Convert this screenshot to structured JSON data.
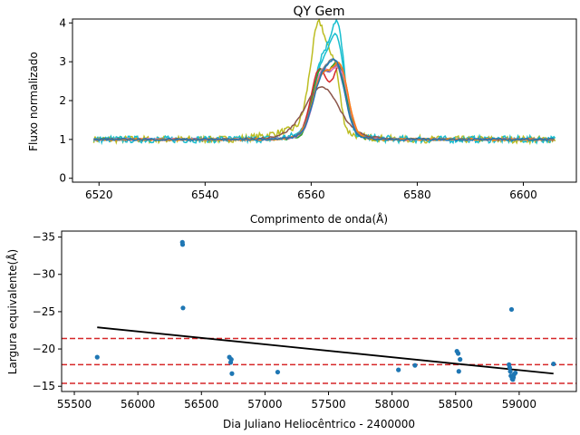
{
  "chart_data": [
    {
      "type": "line",
      "title": "QY Gem",
      "xlabel": "Comprimento de onda(Å)",
      "ylabel": "Fluxo normalizado",
      "xlim": [
        6515,
        6610
      ],
      "ylim": [
        -0.1,
        4.1
      ],
      "xticks": [
        6520,
        6540,
        6560,
        6580,
        6600
      ],
      "yticks": [
        0,
        1,
        2,
        3,
        4
      ],
      "grid": false,
      "legend": "none",
      "x_range_spectra": [
        6519,
        6606
      ],
      "series": [
        {
          "color": "#bcbd22",
          "noisy": true,
          "peaks": [
            [
              6561.5,
              2.7,
              1.6
            ],
            [
              6564.5,
              1.3,
              1.0
            ]
          ],
          "broad": [
            6560,
            0.3,
            6.0
          ]
        },
        {
          "color": "#17becf",
          "noisy": true,
          "peaks": [
            [
              6562.0,
              1.8,
              1.6
            ],
            [
              6565.0,
              2.5,
              1.3
            ]
          ],
          "broad": [
            6563,
            0.2,
            5.0
          ]
        },
        {
          "color": "#17becf",
          "noisy": false,
          "peaks": [
            [
              6562.0,
              1.6,
              1.7
            ],
            [
              6565.0,
              2.1,
              1.4
            ]
          ],
          "broad": [
            6563,
            0.2,
            5.0
          ]
        },
        {
          "color": "#d62728",
          "noisy": false,
          "peaks": [
            [
              6561.5,
              1.6,
              1.5
            ],
            [
              6565.5,
              1.7,
              1.4
            ]
          ],
          "broad": [
            6563,
            0.2,
            4.0
          ]
        },
        {
          "color": "#2ca02c",
          "noisy": false,
          "peaks": [
            [
              6561.5,
              1.5,
              1.4
            ],
            [
              6565.0,
              1.8,
              1.6
            ]
          ],
          "broad": [
            6563,
            0.1,
            4.0
          ]
        },
        {
          "color": "#9467bd",
          "noisy": false,
          "peaks": [
            [
              6562.0,
              1.4,
              1.6
            ],
            [
              6565.5,
              1.6,
              1.5
            ]
          ],
          "broad": [
            6563,
            0.2,
            4.0
          ]
        },
        {
          "color": "#e377c2",
          "noisy": false,
          "peaks": [
            [
              6562.0,
              1.5,
              1.6
            ],
            [
              6565.5,
              1.5,
              1.5
            ]
          ],
          "broad": [
            6563,
            0.2,
            4.0
          ]
        },
        {
          "color": "#8c564b",
          "noisy": false,
          "peaks": [
            [
              6562.0,
              1.15,
              3.0
            ]
          ],
          "broad": [
            6562,
            0.2,
            6.0
          ]
        },
        {
          "color": "#7f7f7f",
          "noisy": false,
          "peaks": [
            [
              6562.0,
              1.3,
              1.8
            ],
            [
              6565.0,
              1.4,
              1.6
            ]
          ],
          "broad": [
            6563,
            0.2,
            4.0
          ]
        },
        {
          "color": "#ff7f0e",
          "noisy": false,
          "peaks": [
            [
              6562.0,
              1.4,
              1.7
            ],
            [
              6565.5,
              1.6,
              1.5
            ]
          ],
          "broad": [
            6563,
            0.2,
            4.0
          ]
        },
        {
          "color": "#1f77b4",
          "noisy": false,
          "peaks": [
            [
              6562.0,
              1.3,
              1.7
            ],
            [
              6565.0,
              1.5,
              1.5
            ]
          ],
          "broad": [
            6563,
            0.2,
            4.0
          ]
        }
      ]
    },
    {
      "type": "scatter",
      "xlabel": "Dia Juliano Heliocêntrico - 2400000",
      "ylabel": "Largura equivalente(Å)",
      "xlim": [
        55400,
        59450
      ],
      "ylim": [
        -14.3,
        -35.8
      ],
      "y_inverted": true,
      "xticks": [
        55500,
        56000,
        56500,
        57000,
        57500,
        58000,
        58500,
        59000
      ],
      "yticks": [
        -15,
        -20,
        -25,
        -30,
        -35
      ],
      "grid": false,
      "legend": "none",
      "point_color": "#1f77b4",
      "points": [
        [
          55680,
          -18.9
        ],
        [
          56350,
          -34.3
        ],
        [
          56352,
          -34.0
        ],
        [
          56355,
          -25.5
        ],
        [
          56720,
          -18.9
        ],
        [
          56730,
          -18.2
        ],
        [
          56735,
          -18.6
        ],
        [
          56740,
          -16.7
        ],
        [
          57100,
          -16.9
        ],
        [
          58050,
          -17.2
        ],
        [
          58180,
          -17.8
        ],
        [
          58510,
          -19.7
        ],
        [
          58520,
          -19.4
        ],
        [
          58525,
          -17.0
        ],
        [
          58535,
          -18.6
        ],
        [
          58920,
          -17.9
        ],
        [
          58925,
          -17.5
        ],
        [
          58930,
          -17.0
        ],
        [
          58935,
          -16.4
        ],
        [
          58940,
          -25.3
        ],
        [
          58945,
          -16.0
        ],
        [
          58950,
          -15.9
        ],
        [
          58955,
          -16.2
        ],
        [
          58960,
          -16.6
        ],
        [
          58970,
          -16.8
        ],
        [
          59270,
          -18.0
        ]
      ],
      "trend_line": {
        "color": "#000000",
        "x": [
          55680,
          59270
        ],
        "y": [
          -22.9,
          -16.7
        ]
      },
      "hlines": {
        "color": "#d62728",
        "style": "dashed",
        "y": [
          -15.4,
          -17.9,
          -21.4
        ]
      }
    }
  ],
  "chart_text": {
    "title": "QY Gem",
    "top_xlabel": "Comprimento de onda(Å)",
    "top_ylabel": "Fluxo normalizado",
    "bottom_xlabel": "Dia Juliano Heliocêntrico - 2400000",
    "bottom_ylabel": "Largura equivalente(Å)"
  }
}
